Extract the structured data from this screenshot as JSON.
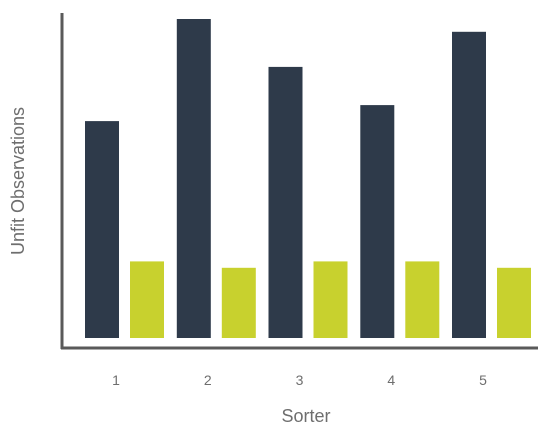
{
  "chart_data": {
    "type": "bar",
    "title": "",
    "xlabel": "Sorter",
    "ylabel": "Unfit Observations",
    "categories": [
      "1",
      "2",
      "3",
      "4",
      "5"
    ],
    "series": [
      {
        "values": [
          68,
          100,
          85,
          73,
          96
        ],
        "color": "#2e3a4a"
      },
      {
        "values": [
          24,
          22,
          24,
          24,
          22
        ],
        "color": "#c8d12e"
      }
    ],
    "ylim": [
      0,
      100
    ],
    "grid": false,
    "legend": "none",
    "show_y_ticks": false
  }
}
